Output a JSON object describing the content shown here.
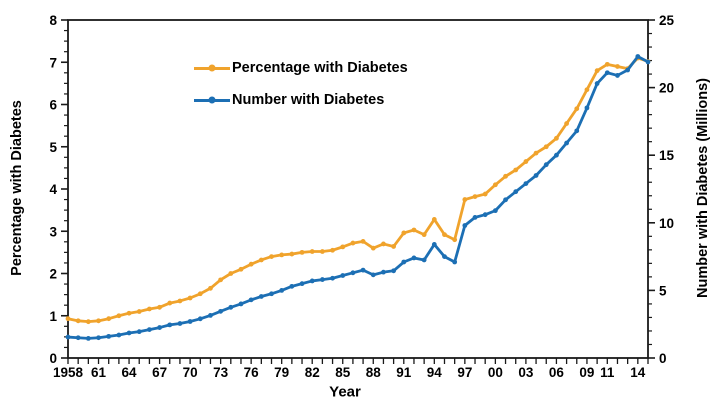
{
  "chart_data": {
    "type": "line",
    "title": "",
    "x_label": "Year",
    "x_range": [
      1958,
      2015
    ],
    "grid": false,
    "legend_position": "inside-upper-left",
    "left_axis": {
      "label": "Percentage with Diabetes",
      "range": [
        0,
        8
      ],
      "major_tick_step": 1,
      "minor_tick_step": 0.25,
      "tick_labels": [
        "0",
        "1",
        "2",
        "3",
        "4",
        "5",
        "6",
        "7",
        "8"
      ]
    },
    "right_axis": {
      "label": "Number with Diabetes (Millions)",
      "range": [
        0,
        25
      ],
      "major_tick_step": 5,
      "minor_tick_step": 1,
      "tick_labels": [
        "0",
        "5",
        "10",
        "15",
        "20",
        "25"
      ]
    },
    "x_tick_labels": [
      {
        "label": "1958",
        "year": 1958
      },
      {
        "label": "61",
        "year": 1961
      },
      {
        "label": "64",
        "year": 1964
      },
      {
        "label": "67",
        "year": 1967
      },
      {
        "label": "70",
        "year": 1970
      },
      {
        "label": "73",
        "year": 1973
      },
      {
        "label": "76",
        "year": 1976
      },
      {
        "label": "79",
        "year": 1979
      },
      {
        "label": "82",
        "year": 1982
      },
      {
        "label": "85",
        "year": 1985
      },
      {
        "label": "88",
        "year": 1988
      },
      {
        "label": "91",
        "year": 1991
      },
      {
        "label": "94",
        "year": 1994
      },
      {
        "label": "97",
        "year": 1997
      },
      {
        "label": "00",
        "year": 2000
      },
      {
        "label": "03",
        "year": 2003
      },
      {
        "label": "06",
        "year": 2006
      },
      {
        "label": "09",
        "year": 2009
      },
      {
        "label": "11",
        "year": 2011
      },
      {
        "label": "14",
        "year": 2014
      }
    ],
    "years": [
      1958,
      1959,
      1960,
      1961,
      1962,
      1963,
      1964,
      1965,
      1966,
      1967,
      1968,
      1969,
      1970,
      1971,
      1972,
      1973,
      1974,
      1975,
      1976,
      1977,
      1978,
      1979,
      1980,
      1981,
      1982,
      1983,
      1984,
      1985,
      1986,
      1987,
      1988,
      1989,
      1990,
      1991,
      1992,
      1993,
      1994,
      1995,
      1996,
      1997,
      1998,
      1999,
      2000,
      2001,
      2002,
      2003,
      2004,
      2005,
      2006,
      2007,
      2008,
      2009,
      2010,
      2011,
      2012,
      2013,
      2014,
      2015
    ],
    "series": [
      {
        "name": "Percentage with Diabetes",
        "axis": "left",
        "color": "#F0A32C",
        "values": [
          0.93,
          0.88,
          0.86,
          0.88,
          0.93,
          1.0,
          1.06,
          1.1,
          1.16,
          1.2,
          1.3,
          1.35,
          1.42,
          1.52,
          1.65,
          1.85,
          2.0,
          2.1,
          2.22,
          2.32,
          2.4,
          2.44,
          2.46,
          2.5,
          2.52,
          2.52,
          2.55,
          2.63,
          2.72,
          2.76,
          2.6,
          2.7,
          2.64,
          2.96,
          3.03,
          2.92,
          3.28,
          2.92,
          2.8,
          3.75,
          3.82,
          3.88,
          4.1,
          4.3,
          4.45,
          4.65,
          4.85,
          5.0,
          5.2,
          5.55,
          5.9,
          6.35,
          6.8,
          6.95,
          6.9,
          6.85,
          7.1,
          7.02
        ]
      },
      {
        "name": "Number with Diabetes",
        "axis": "right",
        "color": "#1C6FB4",
        "values": [
          1.55,
          1.5,
          1.45,
          1.5,
          1.6,
          1.7,
          1.85,
          1.95,
          2.1,
          2.25,
          2.45,
          2.55,
          2.7,
          2.9,
          3.15,
          3.45,
          3.75,
          4.0,
          4.3,
          4.55,
          4.75,
          5.0,
          5.3,
          5.5,
          5.7,
          5.8,
          5.9,
          6.1,
          6.3,
          6.5,
          6.15,
          6.35,
          6.45,
          7.1,
          7.4,
          7.25,
          8.4,
          7.5,
          7.1,
          9.8,
          10.4,
          10.6,
          10.9,
          11.7,
          12.3,
          12.9,
          13.5,
          14.3,
          15.0,
          15.9,
          16.8,
          18.5,
          20.3,
          21.1,
          20.9,
          21.3,
          22.3,
          21.9
        ]
      }
    ]
  }
}
